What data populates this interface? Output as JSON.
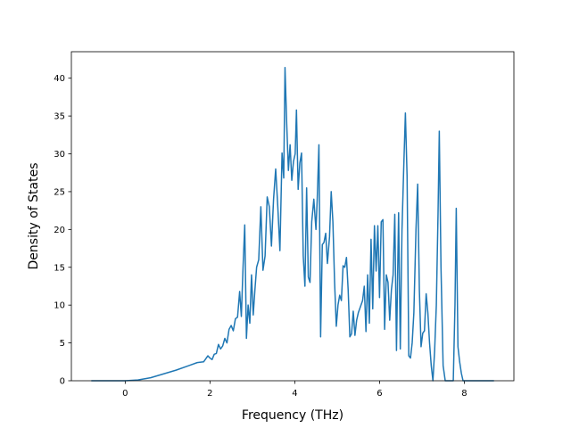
{
  "chart_data": {
    "type": "line",
    "x_label": "Frequency (THz)",
    "y_label": "Density of States",
    "xlim": [
      -1.27,
      9.17
    ],
    "ylim": [
      0,
      43.5
    ],
    "xticks": [
      0,
      2,
      4,
      6,
      8
    ],
    "yticks": [
      0,
      5,
      10,
      15,
      20,
      25,
      30,
      35,
      40
    ],
    "x": [
      -0.8,
      -0.4,
      0,
      0.3,
      0.6,
      0.9,
      1.2,
      1.5,
      1.7,
      1.85,
      1.9,
      1.95,
      2.0,
      2.05,
      2.1,
      2.15,
      2.2,
      2.25,
      2.3,
      2.35,
      2.4,
      2.45,
      2.5,
      2.55,
      2.6,
      2.65,
      2.7,
      2.74,
      2.78,
      2.82,
      2.86,
      2.9,
      2.94,
      2.98,
      3.02,
      3.06,
      3.1,
      3.15,
      3.2,
      3.25,
      3.3,
      3.35,
      3.4,
      3.45,
      3.5,
      3.55,
      3.6,
      3.65,
      3.7,
      3.74,
      3.77,
      3.81,
      3.85,
      3.89,
      3.93,
      3.97,
      4.01,
      4.04,
      4.08,
      4.12,
      4.16,
      4.2,
      4.24,
      4.28,
      4.32,
      4.36,
      4.4,
      4.45,
      4.5,
      4.53,
      4.57,
      4.61,
      4.65,
      4.69,
      4.73,
      4.77,
      4.82,
      4.86,
      4.9,
      4.94,
      4.98,
      5.02,
      5.06,
      5.1,
      5.14,
      5.18,
      5.22,
      5.26,
      5.3,
      5.34,
      5.38,
      5.42,
      5.46,
      5.5,
      5.55,
      5.6,
      5.64,
      5.68,
      5.72,
      5.76,
      5.8,
      5.84,
      5.88,
      5.92,
      5.96,
      6.0,
      6.04,
      6.08,
      6.12,
      6.16,
      6.2,
      6.24,
      6.28,
      6.32,
      6.36,
      6.4,
      6.45,
      6.49,
      6.53,
      6.57,
      6.61,
      6.65,
      6.69,
      6.73,
      6.77,
      6.81,
      6.86,
      6.9,
      6.94,
      6.98,
      7.02,
      7.06,
      7.1,
      7.14,
      7.18,
      7.22,
      7.26,
      7.3,
      7.34,
      7.38,
      7.41,
      7.45,
      7.5,
      7.55,
      7.7,
      7.74,
      7.78,
      7.81,
      7.85,
      7.89,
      7.93,
      7.97,
      8.3,
      8.7
    ],
    "series": [
      {
        "color": "#1f77b4",
        "values": [
          0,
          0,
          0,
          0.1,
          0.4,
          0.9,
          1.4,
          2.0,
          2.4,
          2.5,
          2.9,
          3.3,
          3.0,
          2.8,
          3.5,
          3.6,
          4.8,
          4.2,
          4.6,
          5.6,
          5.0,
          6.8,
          7.3,
          6.6,
          8.2,
          8.4,
          11.8,
          8.5,
          15,
          20.6,
          5.6,
          10,
          7.6,
          14,
          8.7,
          12,
          15,
          16,
          23,
          14.6,
          16.5,
          24.3,
          23,
          17.8,
          24,
          28,
          23,
          17.2,
          30.1,
          26.8,
          41.4,
          34,
          27.8,
          31.2,
          26.5,
          29,
          30,
          35.8,
          25.3,
          28.8,
          30.1,
          16.5,
          12.5,
          25.5,
          13.7,
          13,
          21,
          24,
          20,
          24,
          31.2,
          5.8,
          18,
          18.3,
          19.5,
          15.5,
          19,
          25,
          21,
          13,
          7.2,
          10,
          11.3,
          10.6,
          15.2,
          15,
          16.3,
          12,
          5.8,
          6.2,
          9.2,
          6,
          8,
          9,
          9.8,
          10.6,
          12.5,
          6.5,
          14,
          7.6,
          18.7,
          9.5,
          20.5,
          14.5,
          20.5,
          11,
          21,
          21.3,
          6.8,
          14,
          13,
          8,
          12,
          14,
          22,
          4,
          22.2,
          4.2,
          20,
          28,
          35.4,
          27,
          3.3,
          3,
          5,
          9,
          20,
          26,
          12,
          4.5,
          6.3,
          6.6,
          11.5,
          9,
          5,
          2,
          0,
          4,
          10,
          22,
          33,
          15,
          2,
          0,
          0,
          0,
          10,
          22.8,
          4.5,
          2.5,
          1,
          0,
          0,
          0
        ]
      }
    ]
  }
}
